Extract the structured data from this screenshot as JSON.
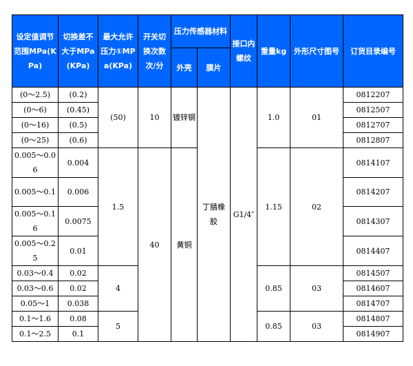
{
  "header": {
    "setting_range": "设定值调节范围MPa(KPa)",
    "switch_diff": "切换差不大于MPa(KPa)",
    "max_pressure": "最大允许压力①MPa(KPa)",
    "switch_freq": "开关切换次数次/分",
    "sensor_material": "压力传感器材料",
    "shell": "外壳",
    "diaphragm": "膜片",
    "thread": "接口内螺纹",
    "weight": "重量kg",
    "dimension_drawing": "外形尺寸图号",
    "order_number": "订货目录编号"
  },
  "rows": [
    {
      "range": "(0～2.5)",
      "diff": "(0.2)",
      "order": "0812207"
    },
    {
      "range": "(0～6)",
      "diff": "(0.45)",
      "order": "0812507"
    },
    {
      "range": "(0～16)",
      "diff": "(0.5)",
      "order": "0812707"
    },
    {
      "range": "(0～25)",
      "diff": "(0.6)",
      "order": "0812807"
    },
    {
      "range": "0.005～0.06",
      "diff": "0.004",
      "order": "0814107"
    },
    {
      "range": "0.005～0.1",
      "diff": "0.006",
      "order": "0814207"
    },
    {
      "range": "0.005～0.16",
      "diff": "0.0075",
      "order": "0814307"
    },
    {
      "range": "0.005～0.25",
      "diff": "0.01",
      "order": "0814407"
    },
    {
      "range": "0.03～0.4",
      "diff": "0.02",
      "order": "0814507"
    },
    {
      "range": "0.03～0.6",
      "diff": "0.02",
      "order": "0814607"
    },
    {
      "range": "0.05～1",
      "diff": "0.038",
      "order": "0814707"
    },
    {
      "range": "0.1～1.6",
      "diff": "0.08",
      "order": "0814807"
    },
    {
      "range": "0.1～2.5",
      "diff": "0.1",
      "order": "0814907"
    }
  ],
  "max_pressure_groups": [
    {
      "value": "(50)",
      "rows": 4
    },
    {
      "value": "1.5",
      "rows": 4
    },
    {
      "value": "4",
      "rows": 3
    },
    {
      "value": "5",
      "rows": 2
    }
  ],
  "switch_freq_groups": [
    {
      "value": "10",
      "rows": 4
    },
    {
      "value": "40",
      "rows": 9
    }
  ],
  "shell_groups": [
    {
      "value": "镀锌钢",
      "rows": 4
    },
    {
      "value": "黄铜",
      "rows": 9
    }
  ],
  "diaphragm_groups": [
    {
      "value": "丁腈橡胶",
      "rows": 13
    }
  ],
  "thread_groups": [
    {
      "value": "G1/4″",
      "rows": 13
    }
  ],
  "weight_groups": [
    {
      "value": "1.0",
      "rows": 4
    },
    {
      "value": "1.15",
      "rows": 4
    },
    {
      "value": "0.85",
      "rows": 3
    },
    {
      "value": "0.85",
      "rows": 2
    }
  ],
  "drawing_groups": [
    {
      "value": "01",
      "rows": 4
    },
    {
      "value": "02",
      "rows": 4
    },
    {
      "value": "03",
      "rows": 3
    },
    {
      "value": "03",
      "rows": 2
    }
  ],
  "colors": {
    "header_bg": "#0066ff",
    "header_text": "#ffffff",
    "border": "#000000"
  }
}
